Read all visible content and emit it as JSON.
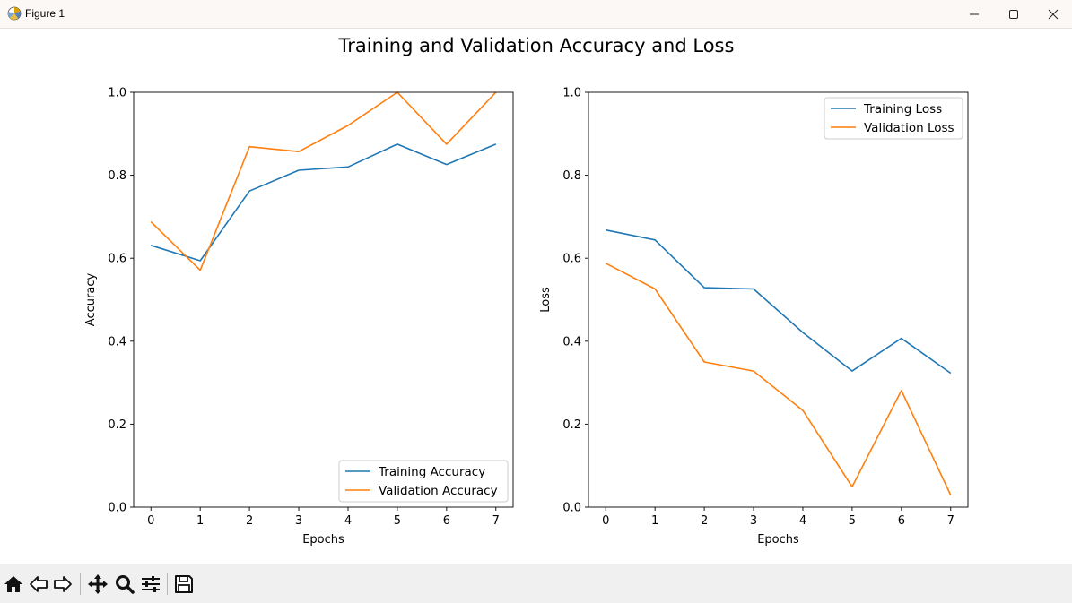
{
  "window": {
    "title": "Figure 1",
    "icon": "matplotlib-icon",
    "controls": [
      "minimize-icon",
      "maximize-icon",
      "close-icon"
    ]
  },
  "figure": {
    "suptitle": "Training and Validation Accuracy and Loss"
  },
  "colors": {
    "training": "#1f77b4",
    "validation": "#ff7f0e"
  },
  "chart_data": [
    {
      "type": "line",
      "title": "",
      "xlabel": "Epochs",
      "ylabel": "Accuracy",
      "x": [
        0,
        1,
        2,
        3,
        4,
        5,
        6,
        7
      ],
      "xlim": [
        -0.35,
        7.35
      ],
      "ylim": [
        0.0,
        1.0
      ],
      "xticks": [
        "0",
        "1",
        "2",
        "3",
        "4",
        "5",
        "6",
        "7"
      ],
      "yticks": [
        "0.0",
        "0.2",
        "0.4",
        "0.6",
        "0.8",
        "1.0"
      ],
      "grid": false,
      "legend_position": "lower-right",
      "series": [
        {
          "name": "Training Accuracy",
          "color": "#1f77b4",
          "values": [
            0.631,
            0.594,
            0.762,
            0.812,
            0.82,
            0.875,
            0.826,
            0.875
          ]
        },
        {
          "name": "Validation Accuracy",
          "color": "#ff7f0e",
          "values": [
            0.688,
            0.571,
            0.869,
            0.857,
            0.92,
            1.0,
            0.875,
            1.0
          ]
        }
      ]
    },
    {
      "type": "line",
      "title": "",
      "xlabel": "Epochs",
      "ylabel": "Loss",
      "x": [
        0,
        1,
        2,
        3,
        4,
        5,
        6,
        7
      ],
      "xlim": [
        -0.35,
        7.35
      ],
      "ylim": [
        0.0,
        1.0
      ],
      "xticks": [
        "0",
        "1",
        "2",
        "3",
        "4",
        "5",
        "6",
        "7"
      ],
      "yticks": [
        "0.0",
        "0.2",
        "0.4",
        "0.6",
        "0.8",
        "1.0"
      ],
      "grid": false,
      "legend_position": "upper-right",
      "series": [
        {
          "name": "Training Loss",
          "color": "#1f77b4",
          "values": [
            0.668,
            0.644,
            0.529,
            0.526,
            0.421,
            0.328,
            0.407,
            0.323
          ]
        },
        {
          "name": "Validation Loss",
          "color": "#ff7f0e",
          "values": [
            0.588,
            0.526,
            0.35,
            0.328,
            0.233,
            0.049,
            0.281,
            0.029
          ]
        }
      ]
    }
  ],
  "toolbar": {
    "buttons": [
      {
        "name": "home-button",
        "icon": "home-icon"
      },
      {
        "name": "back-button",
        "icon": "back-arrow-icon"
      },
      {
        "name": "forward-button",
        "icon": "forward-arrow-icon"
      },
      {
        "name": "pan-button",
        "icon": "move-icon"
      },
      {
        "name": "zoom-button",
        "icon": "magnifier-icon"
      },
      {
        "name": "configure-subplots-button",
        "icon": "sliders-icon"
      },
      {
        "name": "save-button",
        "icon": "floppy-disk-icon"
      }
    ]
  }
}
